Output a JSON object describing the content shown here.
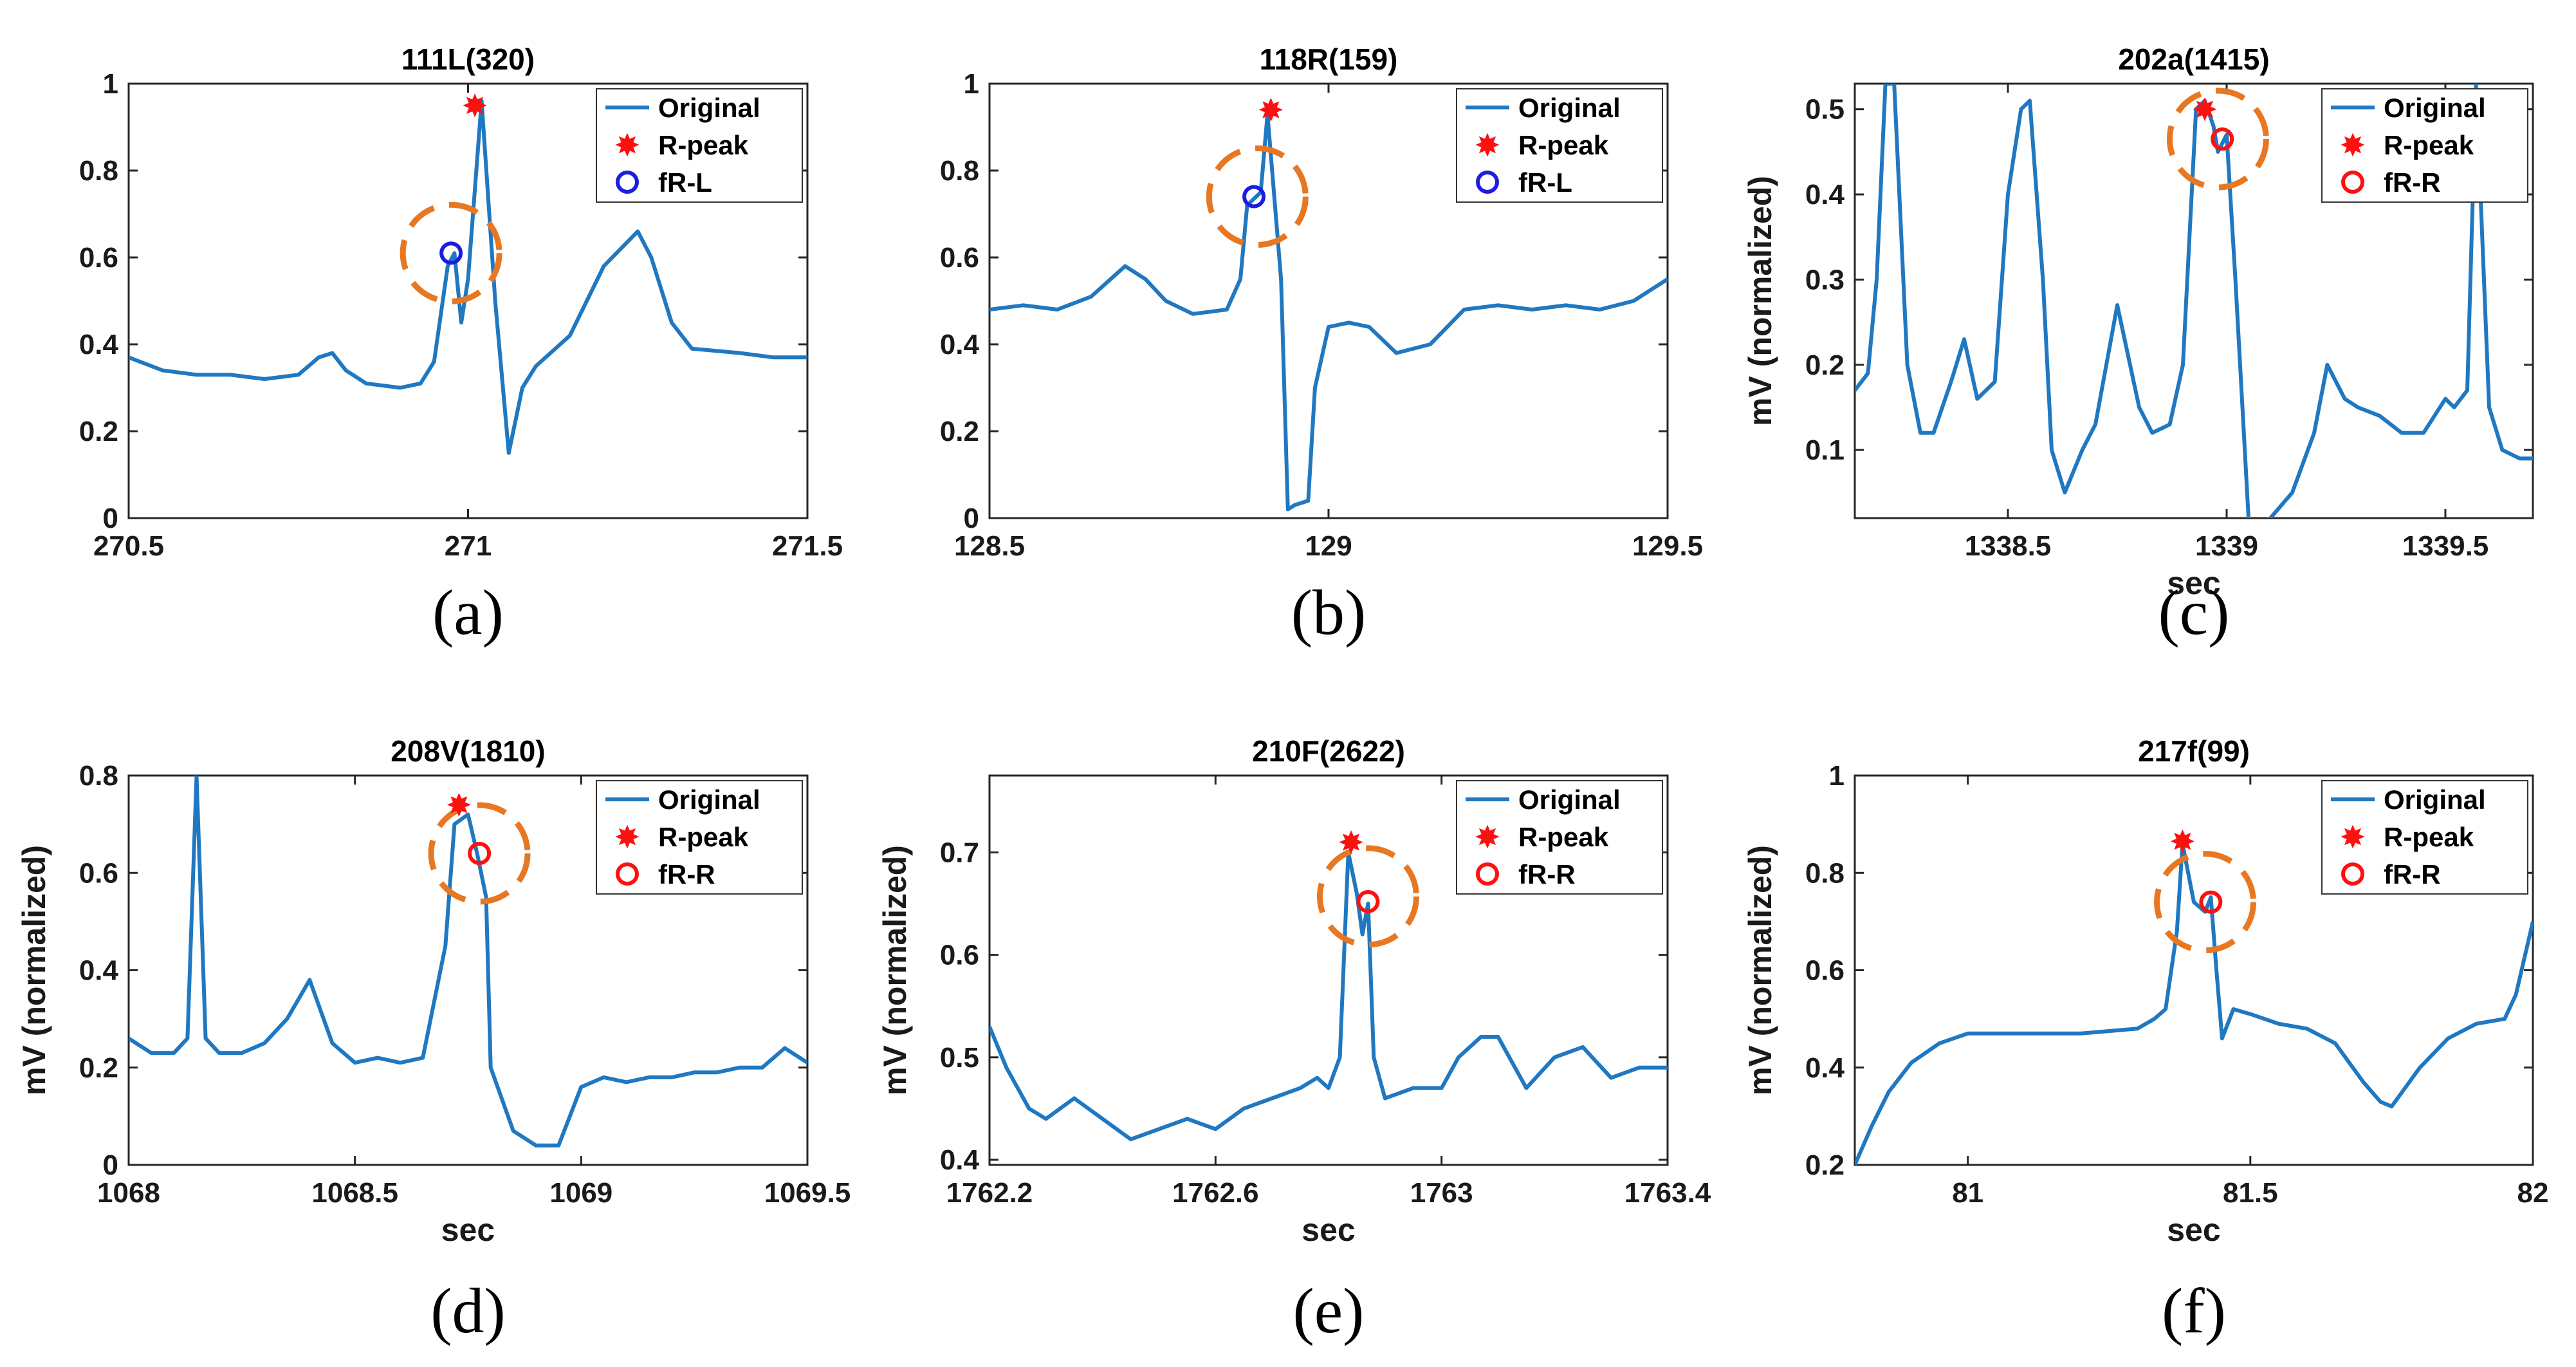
{
  "colors": {
    "signal": "#1f78c1",
    "rpeak": "#ff1010",
    "circle_orange": "#e87722",
    "fr_l": "#1d1de0",
    "fr_r": "#ff1010",
    "axis": "#262626"
  },
  "chart_data": [
    {
      "type": "line",
      "title": "111L(320)",
      "caption": "(a)",
      "xlabel": "",
      "ylabel": "",
      "xlim": [
        270.5,
        271.5
      ],
      "ylim": [
        0,
        1
      ],
      "xticks": [
        270.5,
        271,
        271.5
      ],
      "xtick_labels": [
        "270.5",
        "271",
        "271.5"
      ],
      "yticks": [
        0,
        0.2,
        0.4,
        0.6,
        0.8,
        1
      ],
      "ytick_labels": [
        "0",
        "0.2",
        "0.4",
        "0.6",
        "0.8",
        "1"
      ],
      "legend": {
        "position": "top-right",
        "labels": [
          "Original",
          "R-peak",
          "fR-L"
        ]
      },
      "series": [
        {
          "name": "Original",
          "x": [
            270.5,
            270.55,
            270.6,
            270.65,
            270.7,
            270.75,
            270.78,
            270.8,
            270.82,
            270.85,
            270.9,
            270.93,
            270.95,
            270.97,
            270.98,
            270.99,
            271.0,
            271.02,
            271.04,
            271.06,
            271.08,
            271.1,
            271.15,
            271.2,
            271.25,
            271.27,
            271.3,
            271.33,
            271.4,
            271.45,
            271.5
          ],
          "y": [
            0.37,
            0.34,
            0.33,
            0.33,
            0.32,
            0.33,
            0.37,
            0.38,
            0.34,
            0.31,
            0.3,
            0.31,
            0.36,
            0.58,
            0.61,
            0.45,
            0.55,
            0.96,
            0.5,
            0.15,
            0.3,
            0.35,
            0.42,
            0.58,
            0.66,
            0.6,
            0.45,
            0.39,
            0.38,
            0.37,
            0.37
          ]
        }
      ],
      "markers": [
        {
          "name": "R-peak",
          "x": 271.01,
          "y": 0.95
        },
        {
          "name": "fR-L",
          "x": 270.975,
          "y": 0.61
        }
      ],
      "highlight": {
        "x": 270.975,
        "y": 0.61
      }
    },
    {
      "type": "line",
      "title": "118R(159)",
      "caption": "(b)",
      "xlabel": "",
      "ylabel": "",
      "xlim": [
        128.5,
        129.5
      ],
      "ylim": [
        0,
        1
      ],
      "xticks": [
        128.5,
        129,
        129.5
      ],
      "xtick_labels": [
        "128.5",
        "129",
        "129.5"
      ],
      "yticks": [
        0,
        0.2,
        0.4,
        0.6,
        0.8,
        1
      ],
      "ytick_labels": [
        "0",
        "0.2",
        "0.4",
        "0.6",
        "0.8",
        "1"
      ],
      "legend": {
        "position": "top-right",
        "labels": [
          "Original",
          "R-peak",
          "fR-L"
        ]
      },
      "series": [
        {
          "name": "Original",
          "x": [
            128.5,
            128.55,
            128.6,
            128.65,
            128.7,
            128.73,
            128.76,
            128.8,
            128.85,
            128.87,
            128.88,
            128.9,
            128.91,
            128.93,
            128.94,
            128.95,
            128.97,
            128.98,
            129.0,
            129.03,
            129.06,
            129.1,
            129.15,
            129.2,
            129.25,
            129.3,
            129.35,
            129.4,
            129.45,
            129.5
          ],
          "y": [
            0.48,
            0.49,
            0.48,
            0.51,
            0.58,
            0.55,
            0.5,
            0.47,
            0.48,
            0.55,
            0.72,
            0.75,
            0.93,
            0.55,
            0.02,
            0.03,
            0.04,
            0.3,
            0.44,
            0.45,
            0.44,
            0.38,
            0.4,
            0.48,
            0.49,
            0.48,
            0.49,
            0.48,
            0.5,
            0.55
          ]
        }
      ],
      "markers": [
        {
          "name": "R-peak",
          "x": 128.915,
          "y": 0.94
        },
        {
          "name": "fR-L",
          "x": 128.89,
          "y": 0.74
        }
      ],
      "highlight": {
        "x": 128.895,
        "y": 0.74
      }
    },
    {
      "type": "line",
      "title": "202a(1415)",
      "caption": "(c)",
      "xlabel": "sec",
      "ylabel": "mV (normalized)",
      "xlim": [
        1338.15,
        1339.7
      ],
      "ylim": [
        0.02,
        0.53
      ],
      "xticks": [
        1338.5,
        1339,
        1339.5
      ],
      "xtick_labels": [
        "1338.5",
        "1339",
        "1339.5"
      ],
      "yticks": [
        0.1,
        0.2,
        0.3,
        0.4,
        0.5
      ],
      "ytick_labels": [
        "0.1",
        "0.2",
        "0.3",
        "0.4",
        "0.5"
      ],
      "legend": {
        "position": "top-right",
        "labels": [
          "Original",
          "R-peak",
          "fR-R"
        ]
      },
      "series": [
        {
          "name": "Original",
          "x": [
            1338.15,
            1338.18,
            1338.2,
            1338.22,
            1338.24,
            1338.27,
            1338.3,
            1338.33,
            1338.37,
            1338.4,
            1338.43,
            1338.47,
            1338.5,
            1338.53,
            1338.55,
            1338.58,
            1338.6,
            1338.63,
            1338.67,
            1338.7,
            1338.75,
            1338.8,
            1338.83,
            1338.87,
            1338.9,
            1338.93,
            1338.95,
            1338.97,
            1338.98,
            1339.0,
            1339.02,
            1339.05,
            1339.07,
            1339.1,
            1339.15,
            1339.2,
            1339.23,
            1339.27,
            1339.3,
            1339.35,
            1339.4,
            1339.45,
            1339.5,
            1339.52,
            1339.55,
            1339.57,
            1339.6,
            1339.63,
            1339.67,
            1339.7
          ],
          "y": [
            0.17,
            0.19,
            0.3,
            0.53,
            0.53,
            0.2,
            0.12,
            0.12,
            0.18,
            0.23,
            0.16,
            0.18,
            0.4,
            0.5,
            0.51,
            0.3,
            0.1,
            0.05,
            0.1,
            0.13,
            0.27,
            0.15,
            0.12,
            0.13,
            0.2,
            0.5,
            0.51,
            0.48,
            0.45,
            0.47,
            0.3,
            0.02,
            0.01,
            0.02,
            0.05,
            0.12,
            0.2,
            0.16,
            0.15,
            0.14,
            0.12,
            0.12,
            0.16,
            0.15,
            0.17,
            0.53,
            0.15,
            0.1,
            0.09,
            0.09
          ]
        }
      ],
      "markers": [
        {
          "name": "R-peak",
          "x": 1338.95,
          "y": 0.5
        },
        {
          "name": "fR-R",
          "x": 1338.99,
          "y": 0.465
        }
      ],
      "highlight": {
        "x": 1338.98,
        "y": 0.465
      }
    },
    {
      "type": "line",
      "title": "208V(1810)",
      "caption": "(d)",
      "xlabel": "sec",
      "ylabel": "mV (normalized)",
      "xlim": [
        1068,
        1069.5
      ],
      "ylim": [
        0,
        0.8
      ],
      "xticks": [
        1068,
        1068.5,
        1069,
        1069.5
      ],
      "xtick_labels": [
        "1068",
        "1068.5",
        "1069",
        "1069.5"
      ],
      "yticks": [
        0,
        0.2,
        0.4,
        0.6,
        0.8
      ],
      "ytick_labels": [
        "0",
        "0.2",
        "0.4",
        "0.6",
        "0.8"
      ],
      "legend": {
        "position": "top-right",
        "labels": [
          "Original",
          "R-peak",
          "fR-R"
        ]
      },
      "series": [
        {
          "name": "Original",
          "x": [
            1068.0,
            1068.05,
            1068.1,
            1068.13,
            1068.15,
            1068.17,
            1068.2,
            1068.25,
            1068.3,
            1068.35,
            1068.4,
            1068.45,
            1068.5,
            1068.55,
            1068.6,
            1068.65,
            1068.7,
            1068.72,
            1068.75,
            1068.77,
            1068.79,
            1068.8,
            1068.85,
            1068.9,
            1068.95,
            1069.0,
            1069.05,
            1069.1,
            1069.15,
            1069.2,
            1069.25,
            1069.3,
            1069.35,
            1069.4,
            1069.45,
            1069.5
          ],
          "y": [
            0.26,
            0.23,
            0.23,
            0.26,
            0.8,
            0.26,
            0.23,
            0.23,
            0.25,
            0.3,
            0.38,
            0.25,
            0.21,
            0.22,
            0.21,
            0.22,
            0.45,
            0.7,
            0.72,
            0.64,
            0.55,
            0.2,
            0.07,
            0.04,
            0.04,
            0.16,
            0.18,
            0.17,
            0.18,
            0.18,
            0.19,
            0.19,
            0.2,
            0.2,
            0.24,
            0.21
          ]
        }
      ],
      "markers": [
        {
          "name": "R-peak",
          "x": 1068.73,
          "y": 0.74
        },
        {
          "name": "fR-R",
          "x": 1068.775,
          "y": 0.64
        }
      ],
      "highlight": {
        "x": 1068.775,
        "y": 0.64
      }
    },
    {
      "type": "line",
      "title": "210F(2622)",
      "caption": "(e)",
      "xlabel": "sec",
      "ylabel": "mV (normalized)",
      "xlim": [
        1762.2,
        1763.4
      ],
      "ylim": [
        0.395,
        0.775
      ],
      "xticks": [
        1762.2,
        1762.6,
        1763,
        1763.4
      ],
      "xtick_labels": [
        "1762.2",
        "1762.6",
        "1763",
        "1763.4"
      ],
      "yticks": [
        0.4,
        0.5,
        0.6,
        0.7
      ],
      "ytick_labels": [
        "0.4",
        "0.5",
        "0.6",
        "0.7"
      ],
      "legend": {
        "position": "top-right",
        "labels": [
          "Original",
          "R-peak",
          "fR-R"
        ]
      },
      "series": [
        {
          "name": "Original",
          "x": [
            1762.2,
            1762.23,
            1762.27,
            1762.3,
            1762.35,
            1762.4,
            1762.45,
            1762.5,
            1762.55,
            1762.6,
            1762.65,
            1762.7,
            1762.75,
            1762.78,
            1762.8,
            1762.82,
            1762.835,
            1762.85,
            1762.86,
            1762.87,
            1762.88,
            1762.9,
            1762.95,
            1763.0,
            1763.03,
            1763.07,
            1763.1,
            1763.15,
            1763.2,
            1763.25,
            1763.3,
            1763.35,
            1763.4
          ],
          "y": [
            0.53,
            0.49,
            0.45,
            0.44,
            0.46,
            0.44,
            0.42,
            0.43,
            0.44,
            0.43,
            0.45,
            0.46,
            0.47,
            0.48,
            0.47,
            0.5,
            0.7,
            0.66,
            0.62,
            0.65,
            0.5,
            0.46,
            0.47,
            0.47,
            0.5,
            0.52,
            0.52,
            0.47,
            0.5,
            0.51,
            0.48,
            0.49,
            0.49
          ]
        }
      ],
      "markers": [
        {
          "name": "R-peak",
          "x": 1762.84,
          "y": 0.71
        },
        {
          "name": "fR-R",
          "x": 1762.87,
          "y": 0.652
        }
      ],
      "highlight": {
        "x": 1762.87,
        "y": 0.657
      }
    },
    {
      "type": "line",
      "title": "217f(99)",
      "caption": "(f)",
      "xlabel": "sec",
      "ylabel": "mV (normalized)",
      "xlim": [
        80.8,
        82.0
      ],
      "ylim": [
        0.2,
        1.0
      ],
      "xticks": [
        81,
        81.5,
        82
      ],
      "xtick_labels": [
        "81",
        "81.5",
        "82"
      ],
      "yticks": [
        0.2,
        0.4,
        0.6,
        0.8,
        1
      ],
      "ytick_labels": [
        "0.2",
        "0.4",
        "0.6",
        "0.8",
        "1"
      ],
      "legend": {
        "position": "top-right",
        "labels": [
          "Original",
          "R-peak",
          "fR-R"
        ]
      },
      "series": [
        {
          "name": "Original",
          "x": [
            80.8,
            80.83,
            80.86,
            80.9,
            80.95,
            81.0,
            81.1,
            81.2,
            81.3,
            81.33,
            81.35,
            81.37,
            81.38,
            81.39,
            81.4,
            81.42,
            81.43,
            81.44,
            81.45,
            81.47,
            81.5,
            81.55,
            81.6,
            81.65,
            81.7,
            81.73,
            81.75,
            81.8,
            81.85,
            81.9,
            81.95,
            81.97,
            82.0
          ],
          "y": [
            0.2,
            0.28,
            0.35,
            0.41,
            0.45,
            0.47,
            0.47,
            0.47,
            0.48,
            0.5,
            0.52,
            0.68,
            0.86,
            0.8,
            0.74,
            0.72,
            0.75,
            0.6,
            0.46,
            0.52,
            0.51,
            0.49,
            0.48,
            0.45,
            0.37,
            0.33,
            0.32,
            0.4,
            0.46,
            0.49,
            0.5,
            0.55,
            0.7
          ]
        }
      ],
      "markers": [
        {
          "name": "R-peak",
          "x": 81.38,
          "y": 0.865
        },
        {
          "name": "fR-R",
          "x": 81.43,
          "y": 0.74
        }
      ],
      "highlight": {
        "x": 81.42,
        "y": 0.74
      }
    }
  ]
}
